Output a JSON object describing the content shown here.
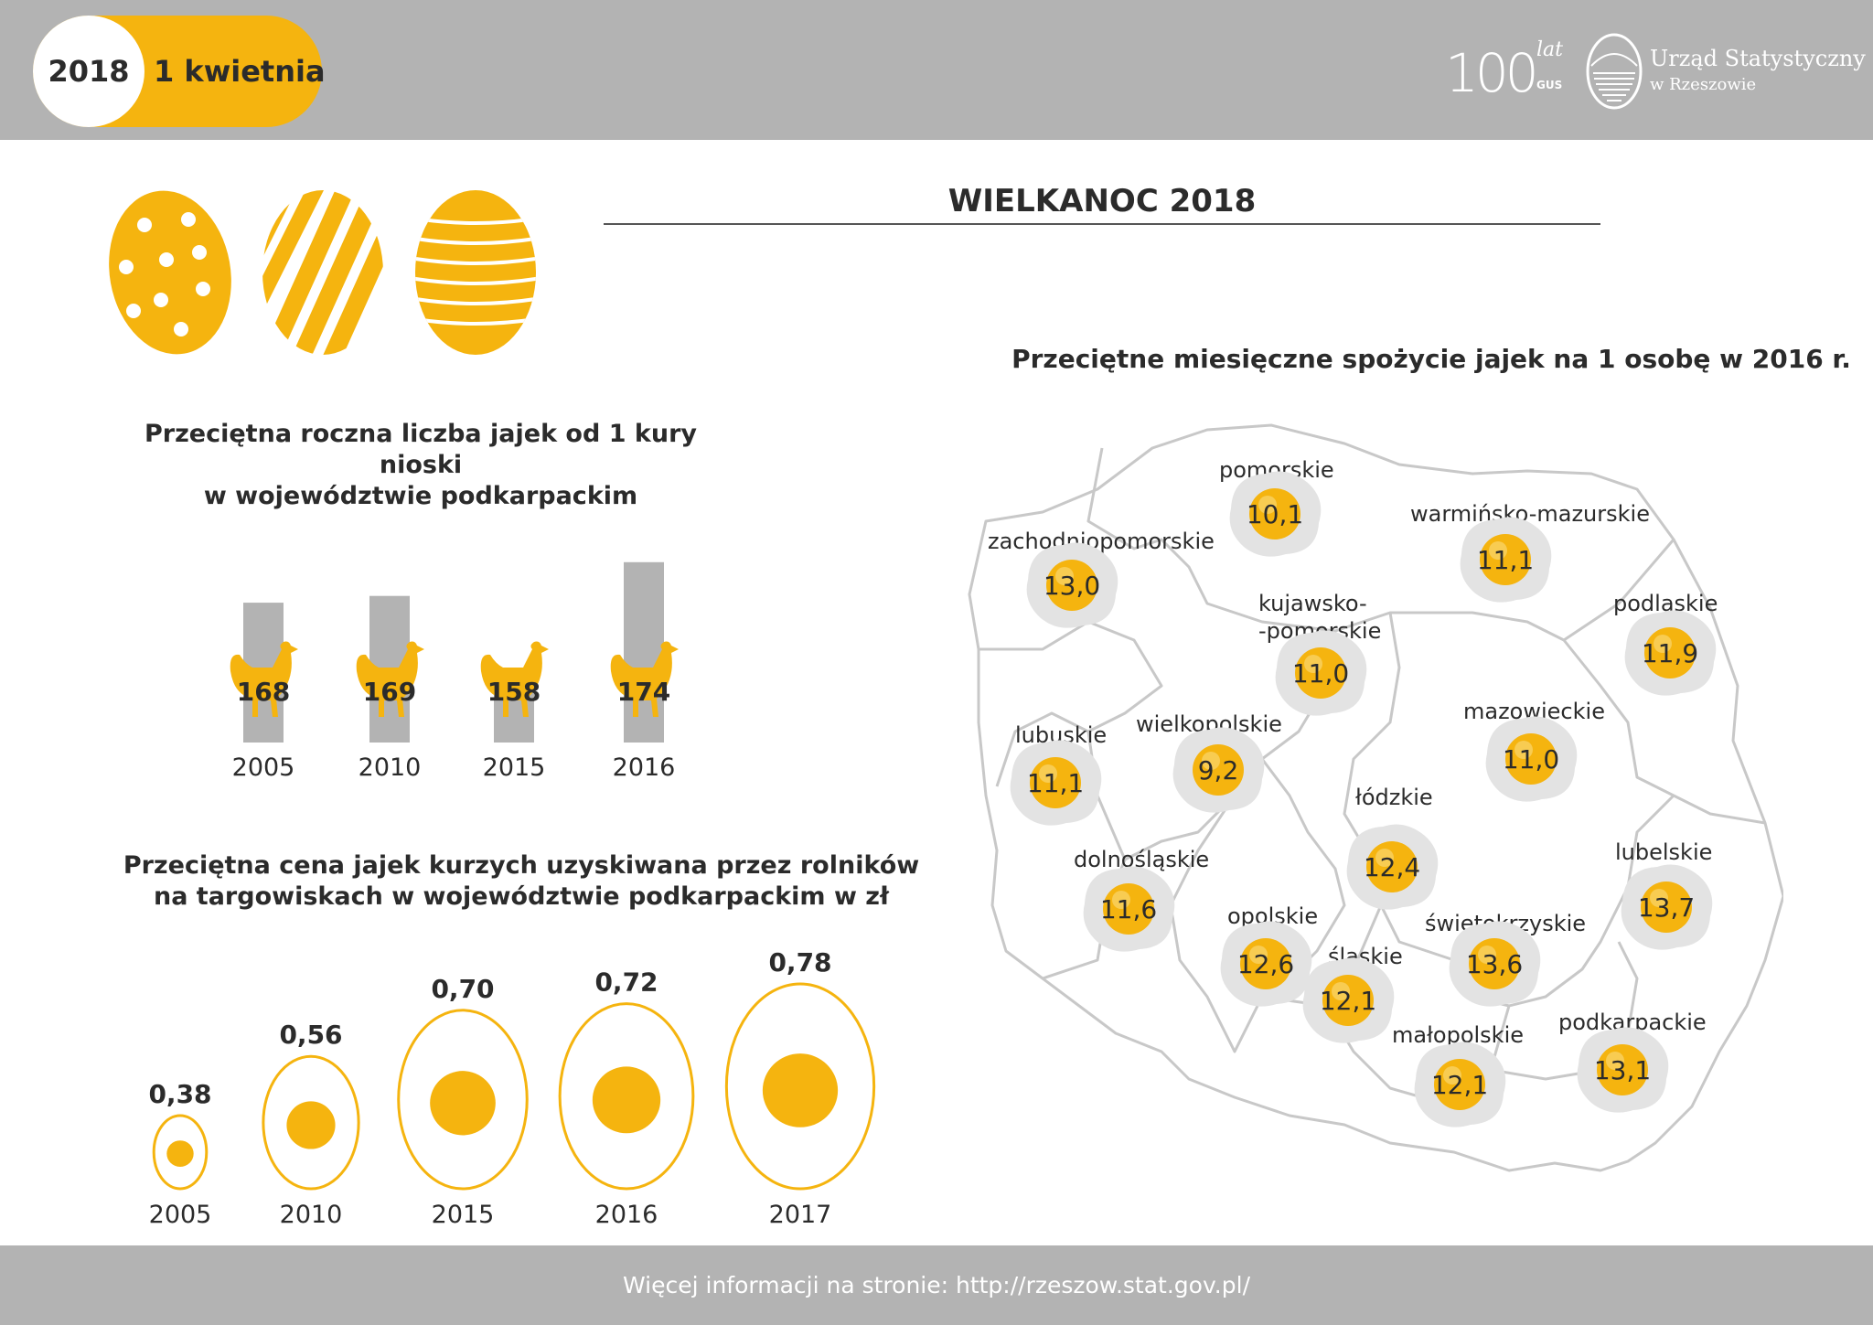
{
  "header": {
    "year": "2018",
    "date": "1 kwietnia",
    "logo_number": "100",
    "logo_lat": "lat",
    "logo_gus": "GUS",
    "office_name": "Urząd Statystyczny",
    "office_city": "w Rzeszowie"
  },
  "main_title": "WIELKANOC 2018",
  "colors": {
    "accent": "#f5b40f",
    "gray": "#b3b3b3",
    "bar": "#b3b3b3",
    "text": "#2b2b2b"
  },
  "hen_section": {
    "title_line1": "Przeciętna roczna liczba jajek od 1 kury nioski",
    "title_line2": "w województwie podkarpackim"
  },
  "price_section": {
    "title_line1": "Przeciętna cena jajek kurzych uzyskiwana przez rolników",
    "title_line2": "na targowiskach w województwie podkarpackim w zł"
  },
  "map_section": {
    "title": "Przeciętne miesięczne spożycie jajek na 1 osobę w 2016 r."
  },
  "chart_data": [
    {
      "type": "bar",
      "title": "Przeciętna roczna liczba jajek od 1 kury nioski w województwie podkarpackim",
      "categories": [
        "2005",
        "2010",
        "2015",
        "2016"
      ],
      "values": [
        168,
        169,
        158,
        174
      ],
      "value_labels": [
        "168",
        "169",
        "158",
        "174"
      ]
    },
    {
      "type": "bar",
      "title": "Przeciętna cena jajek kurzych uzyskiwana przez rolników na targowiskach w województwie podkarpackim w zł",
      "categories": [
        "2005",
        "2010",
        "2015",
        "2016",
        "2017"
      ],
      "values": [
        0.38,
        0.56,
        0.7,
        0.72,
        0.78
      ],
      "value_labels": [
        "0,38",
        "0,56",
        "0,70",
        "0,72",
        "0,78"
      ]
    },
    {
      "type": "table",
      "title": "Przeciętne miesięczne spożycie jajek na 1 osobę w 2016 r.",
      "regions": [
        {
          "name": "pomorskie",
          "value": "10,1"
        },
        {
          "name": "warmińsko-mazurskie",
          "value": "11,1"
        },
        {
          "name": "zachodniopomorskie",
          "value": "13,0"
        },
        {
          "name": "kujawsko-pomorskie",
          "value": "11,0"
        },
        {
          "name": "podlaskie",
          "value": "11,9"
        },
        {
          "name": "lubuskie",
          "value": "11,1"
        },
        {
          "name": "wielkopolskie",
          "value": "9,2"
        },
        {
          "name": "mazowieckie",
          "value": "11,0"
        },
        {
          "name": "łódzkie",
          "value": "12,4"
        },
        {
          "name": "dolnośląskie",
          "value": "11,6"
        },
        {
          "name": "lubelskie",
          "value": "13,7"
        },
        {
          "name": "opolskie",
          "value": "12,6"
        },
        {
          "name": "śląskie",
          "value": "12,1"
        },
        {
          "name": "świętokrzyskie",
          "value": "13,6"
        },
        {
          "name": "małopolskie",
          "value": "12,1"
        },
        {
          "name": "podkarpackie",
          "value": "13,1"
        }
      ]
    }
  ],
  "map_labels": {
    "kujawsko_line1": "kujawsko-",
    "kujawsko_line2": "-pomorskie"
  },
  "footer": {
    "text": "Więcej informacji na stronie: http://rzeszow.stat.gov.pl/"
  }
}
